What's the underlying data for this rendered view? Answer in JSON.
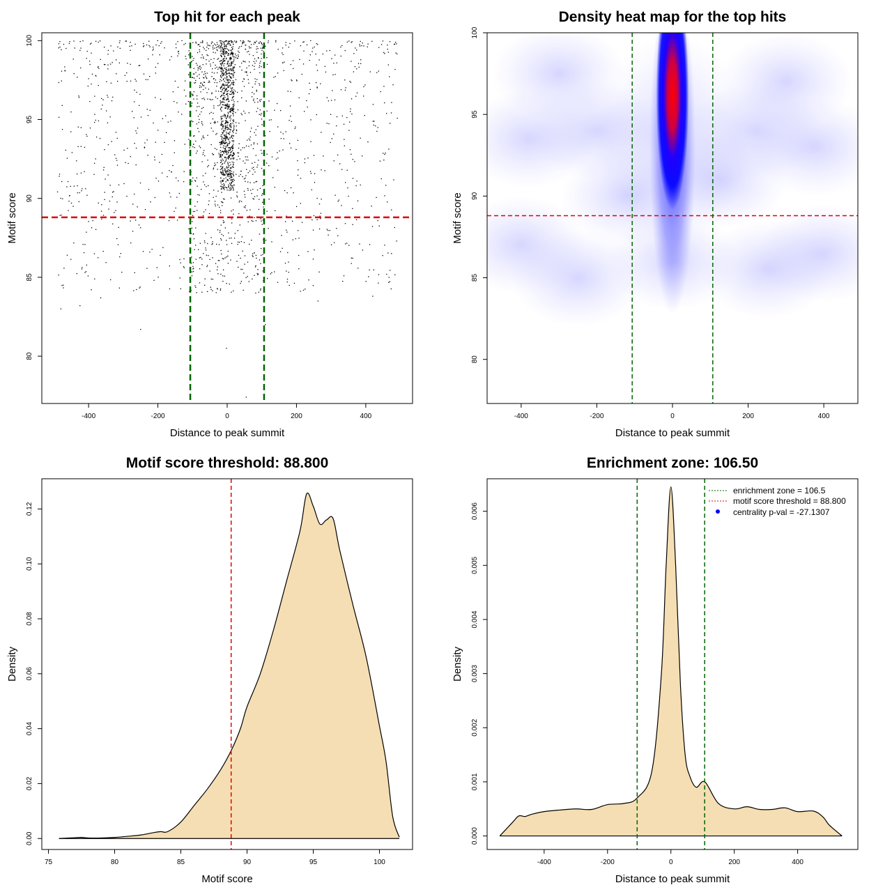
{
  "chart_data": [
    {
      "type": "scatter",
      "title": "Top hit for each peak",
      "xlabel": "Distance to peak summit",
      "ylabel": "Motif score",
      "xlim": [
        -535,
        535
      ],
      "ylim": [
        77,
        100.5
      ],
      "xticks": [
        "-400",
        "-200",
        "0",
        "200",
        "400"
      ],
      "xtick_values": [
        -400,
        -200,
        0,
        200,
        400
      ],
      "yticks": [
        "80",
        "85",
        "90",
        "95",
        "100"
      ],
      "ytick_values": [
        80,
        85,
        90,
        95,
        100
      ],
      "vlines": [
        -106.5,
        106.5
      ],
      "hline": 88.8,
      "colors": {
        "points": "#000000",
        "vline": "#006400",
        "hline": "#e00000"
      },
      "point_distribution": {
        "central": {
          "x_range": [
            -20,
            20
          ],
          "y_range": [
            90.5,
            100
          ],
          "count": 800
        },
        "near_center": {
          "x_range": [
            -106,
            106
          ],
          "y_range": [
            84,
            100
          ],
          "count": 600
        },
        "background": {
          "x_range": [
            -490,
            495
          ],
          "y_range": [
            84,
            100
          ],
          "count": 1000
        }
      },
      "outliers": [
        {
          "x": -480,
          "y": 83
        },
        {
          "x": -425,
          "y": 83.2
        },
        {
          "x": -365,
          "y": 83.7
        },
        {
          "x": -250,
          "y": 81.7
        },
        {
          "x": -2,
          "y": 80.5
        },
        {
          "x": 55,
          "y": 77.4
        },
        {
          "x": 262,
          "y": 83.5
        },
        {
          "x": 420,
          "y": 83.8
        },
        {
          "x": 110,
          "y": 82
        }
      ]
    },
    {
      "type": "heatmap",
      "title": "Density heat map for the top hits",
      "xlabel": "Distance to peak summit",
      "ylabel": "Motif score",
      "xlim": [
        -490,
        490
      ],
      "ylim": [
        77.3,
        100
      ],
      "xticks": [
        "-400",
        "-200",
        "0",
        "200",
        "400"
      ],
      "xtick_values": [
        -400,
        -200,
        0,
        200,
        400
      ],
      "yticks": [
        "80",
        "85",
        "90",
        "95",
        "100"
      ],
      "ytick_values": [
        80,
        85,
        90,
        95,
        100
      ],
      "vlines": [
        -106.5,
        106.5
      ],
      "hline": 88.8,
      "colors": {
        "low": "#ffffff",
        "mid": "#0000ff",
        "high": "#ff0000",
        "vline": "#006400",
        "hline": "#e00000"
      },
      "hotspot": {
        "x": 0,
        "y": 96.2,
        "x_sd": 32,
        "y_sd": 3.2
      }
    },
    {
      "type": "area",
      "title": "Motif score threshold: 88.800",
      "xlabel": "Motif score",
      "ylabel": "Density",
      "xlim": [
        74.5,
        102.5
      ],
      "ylim": [
        -0.004,
        0.131
      ],
      "xticks": [
        "75",
        "80",
        "85",
        "90",
        "95",
        "100"
      ],
      "xtick_values": [
        75,
        80,
        85,
        90,
        95,
        100
      ],
      "yticks": [
        "0.00",
        "0.02",
        "0.04",
        "0.06",
        "0.08",
        "0.10",
        "0.12"
      ],
      "ytick_values": [
        0,
        0.02,
        0.04,
        0.06,
        0.08,
        0.1,
        0.12
      ],
      "vline": 88.8,
      "colors": {
        "fill": "#f5deb3",
        "line": "#000000",
        "vline": "#e00000"
      },
      "x": [
        75.8,
        77,
        77.5,
        78,
        79,
        80,
        81,
        82,
        83,
        83.5,
        84,
        85,
        86,
        87,
        88,
        88.8,
        89.5,
        90,
        91,
        92,
        93,
        94,
        94.5,
        95,
        95.5,
        96,
        96.5,
        97,
        98,
        99,
        100,
        100.5,
        101,
        101.5
      ],
      "y": [
        0,
        0.0003,
        0.0004,
        0.0002,
        0.0002,
        0.0004,
        0.0008,
        0.0013,
        0.0022,
        0.0025,
        0.0025,
        0.006,
        0.012,
        0.018,
        0.025,
        0.032,
        0.04,
        0.048,
        0.06,
        0.076,
        0.094,
        0.112,
        0.1255,
        0.121,
        0.1145,
        0.116,
        0.1165,
        0.105,
        0.085,
        0.066,
        0.041,
        0.028,
        0.008,
        0.0005
      ]
    },
    {
      "type": "area",
      "title": "Enrichment zone: 106.50",
      "xlabel": "Distance to peak summit",
      "ylabel": "Density",
      "xlim": [
        -580,
        590
      ],
      "ylim": [
        -0.00025,
        0.0066
      ],
      "xticks": [
        "-400",
        "-200",
        "0",
        "200",
        "400"
      ],
      "xtick_values": [
        -400,
        -200,
        0,
        200,
        400
      ],
      "yticks": [
        "0.000",
        "0.001",
        "0.002",
        "0.003",
        "0.004",
        "0.005",
        "0.006"
      ],
      "ytick_values": [
        0,
        0.001,
        0.002,
        0.003,
        0.004,
        0.005,
        0.006
      ],
      "vlines": [
        -106.5,
        106.5
      ],
      "colors": {
        "fill": "#f5deb3",
        "line": "#000000",
        "vline": "#006400",
        "hline": "#e00000",
        "point": "#0000ff"
      },
      "x": [
        -540,
        -500,
        -480,
        -460,
        -440,
        -400,
        -350,
        -300,
        -250,
        -200,
        -150,
        -107,
        -60,
        -30,
        -15,
        0,
        15,
        30,
        45,
        60,
        80,
        107,
        150,
        200,
        240,
        280,
        320,
        360,
        400,
        450,
        480,
        500,
        540
      ],
      "y": [
        0,
        0.00025,
        0.00037,
        0.00036,
        0.0004,
        0.00045,
        0.00048,
        0.0005,
        0.00049,
        0.00058,
        0.0006,
        0.0007,
        0.0012,
        0.003,
        0.005,
        0.00645,
        0.005,
        0.0028,
        0.0015,
        0.0011,
        0.0009,
        0.001,
        0.0006,
        0.0005,
        0.00054,
        0.00049,
        0.00049,
        0.00052,
        0.00045,
        0.00046,
        0.00035,
        0.0002,
        0
      ],
      "legend": {
        "position": "top-right",
        "entries": [
          {
            "label": "enrichment zone = 106.5",
            "style": "dotted",
            "color": "#006400"
          },
          {
            "label": "motif score threshold = 88.800",
            "style": "dotted",
            "color": "#e00000"
          },
          {
            "label": "centrality p-val = -27.1307",
            "style": "point",
            "color": "#0000ff"
          }
        ]
      }
    }
  ]
}
